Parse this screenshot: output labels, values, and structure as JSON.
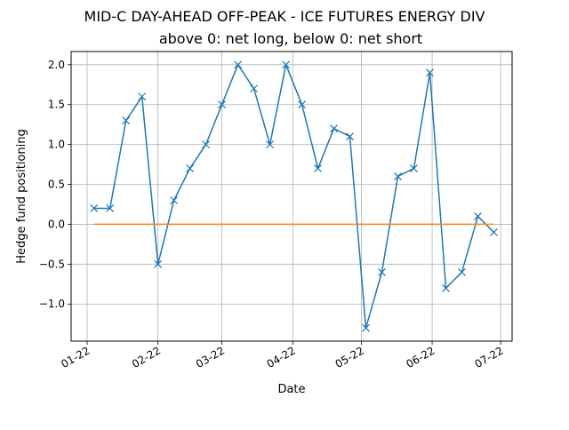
{
  "chart_data": {
    "type": "line",
    "title": "MID-C DAY-AHEAD OFF-PEAK - ICE FUTURES ENERGY DIV",
    "subtitle": "above 0: net long, below 0: net short",
    "xlabel": "Date",
    "ylabel": "Hedge fund positioning",
    "x_tick_labels": [
      "01-22",
      "02-22",
      "03-22",
      "04-22",
      "05-22",
      "06-22",
      "07-22"
    ],
    "x_ticks": [
      "2022-01-01",
      "2022-02-01",
      "2022-03-01",
      "2022-04-01",
      "2022-05-01",
      "2022-06-01",
      "2022-07-01"
    ],
    "y_tick_labels": [
      "−1.0",
      "−0.5",
      "0.0",
      "0.5",
      "1.0",
      "1.5",
      "2.0"
    ],
    "y_ticks": [
      -1.0,
      -0.5,
      0.0,
      0.5,
      1.0,
      1.5,
      2.0
    ],
    "xlim": [
      "2021-12-25",
      "2022-07-06"
    ],
    "ylim": [
      -1.465,
      2.165
    ],
    "grid": true,
    "colors": {
      "positioning": "#1f77b4",
      "zero": "#ff7f0e"
    },
    "series": [
      {
        "marker": "x",
        "x": [
          "2022-01-04",
          "2022-01-11",
          "2022-01-18",
          "2022-01-25",
          "2022-02-01",
          "2022-02-08",
          "2022-02-15",
          "2022-02-22",
          "2022-03-01",
          "2022-03-08",
          "2022-03-15",
          "2022-03-22",
          "2022-03-29",
          "2022-04-05",
          "2022-04-12",
          "2022-04-19",
          "2022-04-26",
          "2022-05-03",
          "2022-05-10",
          "2022-05-17",
          "2022-05-24",
          "2022-05-31",
          "2022-06-07",
          "2022-06-14",
          "2022-06-21",
          "2022-06-28"
        ],
        "values": [
          0.2,
          0.2,
          1.3,
          1.6,
          -0.5,
          0.3,
          0.7,
          1.0,
          1.5,
          2.0,
          1.7,
          1.0,
          2.0,
          1.5,
          0.7,
          1.2,
          1.1,
          -1.3,
          -0.6,
          0.6,
          0.7,
          1.9,
          -0.8,
          -0.6,
          0.1,
          -0.1
        ]
      },
      {
        "x": [
          "2022-01-04",
          "2022-06-28"
        ],
        "values": [
          0.0,
          0.0
        ]
      }
    ]
  }
}
